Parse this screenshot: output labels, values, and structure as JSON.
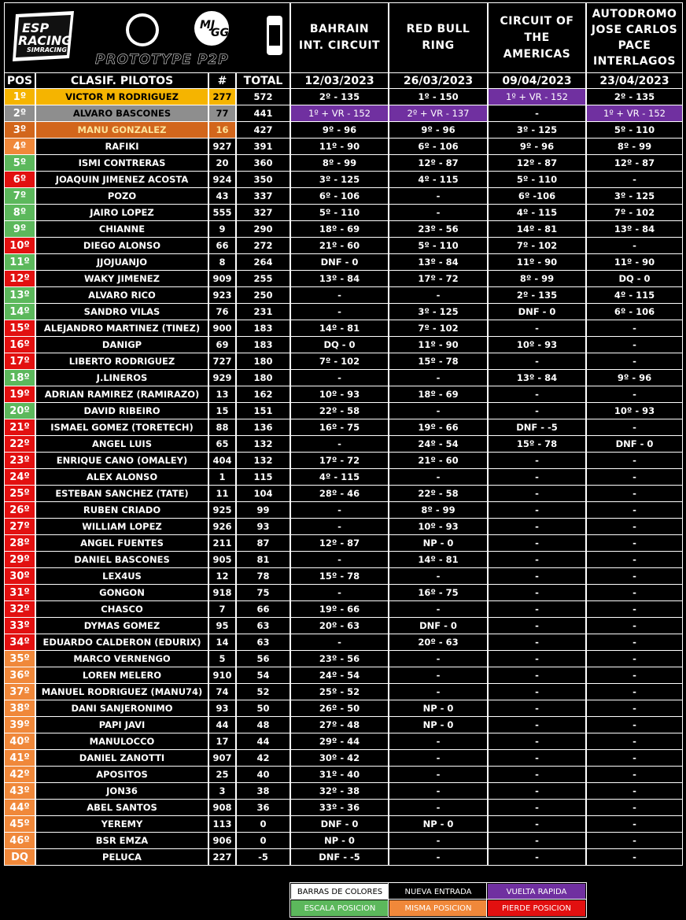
{
  "header": {
    "logos": {
      "brand": "ESP",
      "brand2": "RACING",
      "brand_sub": "SIMRACING",
      "team": "MJ",
      "team2": "GG",
      "series": "PROTOTYPE P2P"
    }
  },
  "columns": {
    "pos": "POS",
    "driver": "CLASIF. PILOTOS",
    "number": "#",
    "total": "TOTAL"
  },
  "races": [
    {
      "name_lines": [
        "BAHRAIN",
        "INT. CIRCUIT"
      ],
      "date": "12/03/2023"
    },
    {
      "name_lines": [
        "RED BULL",
        "RING"
      ],
      "date": "26/03/2023"
    },
    {
      "name_lines": [
        "CIRCUIT OF",
        "THE",
        "AMERICAS"
      ],
      "date": "09/04/2023"
    },
    {
      "name_lines": [
        "AUTODROMO",
        "JOSE CARLOS",
        "PACE",
        "INTERLAGOS"
      ],
      "date": "23/04/2023"
    }
  ],
  "rows": [
    {
      "pos": "1º",
      "name": "VICTOR M RODRIGUEZ",
      "number": 277,
      "total": 572,
      "results": [
        "2º - 135",
        "1º - 150",
        "1º + VR - 152",
        "2º - 135"
      ],
      "color": "#f5b400"
    },
    {
      "pos": "2º",
      "name": "ALVARO BASCONES",
      "number": 77,
      "total": 441,
      "results": [
        "1º + VR - 152",
        "2º + VR - 137",
        "-",
        "1º + VR - 152"
      ],
      "color": "#8e8e8e"
    },
    {
      "pos": "3º",
      "name": "MANU GONZALEZ",
      "number": 16,
      "total": 427,
      "results": [
        "9º - 96",
        "9º - 96",
        "3º - 125",
        "5º - 110"
      ],
      "color": "#d2661c"
    },
    {
      "pos": "4º",
      "name": "RAFIKI",
      "number": 927,
      "total": 391,
      "results": [
        "11º - 90",
        "6º - 106",
        "9º - 96",
        "8º - 99"
      ],
      "color": "#f0883a"
    },
    {
      "pos": "5º",
      "name": "ISMI CONTRERAS",
      "number": 20,
      "total": 360,
      "results": [
        "8º - 99",
        "12º - 87",
        "12º - 87",
        "12º - 87"
      ],
      "color": "#5cb85c"
    },
    {
      "pos": "6º",
      "name": "JOAQUIN JIMENEZ ACOSTA",
      "number": 924,
      "total": 350,
      "results": [
        "3º - 125",
        "4º - 115",
        "5º - 110",
        "-"
      ],
      "color": "#e21010"
    },
    {
      "pos": "7º",
      "name": "POZO",
      "number": 43,
      "total": 337,
      "results": [
        "6º - 106",
        "-",
        "6º -106",
        "3º - 125"
      ],
      "color": "#5cb85c"
    },
    {
      "pos": "8º",
      "name": "JAIRO LOPEZ",
      "number": 555,
      "total": 327,
      "results": [
        "5º - 110",
        "-",
        "4º - 115",
        "7º - 102"
      ],
      "color": "#5cb85c"
    },
    {
      "pos": "9º",
      "name": "CHIANNE",
      "number": 9,
      "total": 290,
      "results": [
        "18º - 69",
        "23º - 56",
        "14º - 81",
        "13º - 84"
      ],
      "color": "#5cb85c"
    },
    {
      "pos": "10º",
      "name": "DIEGO ALONSO",
      "number": 66,
      "total": 272,
      "results": [
        "21º - 60",
        "5º - 110",
        "7º - 102",
        "-"
      ],
      "color": "#e21010"
    },
    {
      "pos": "11º",
      "name": "JJOJUANJO",
      "number": 8,
      "total": 264,
      "results": [
        "DNF - 0",
        "13º - 84",
        "11º - 90",
        "11º - 90"
      ],
      "color": "#5cb85c"
    },
    {
      "pos": "12º",
      "name": "WAKY JIMENEZ",
      "number": 909,
      "total": 255,
      "results": [
        "13º - 84",
        "17º - 72",
        "8º - 99",
        "DQ - 0"
      ],
      "color": "#e21010"
    },
    {
      "pos": "13º",
      "name": "ALVARO RICO",
      "number": 923,
      "total": 250,
      "results": [
        "-",
        "-",
        "2º - 135",
        "4º - 115"
      ],
      "color": "#5cb85c"
    },
    {
      "pos": "14º",
      "name": "SANDRO VILAS",
      "number": 76,
      "total": 231,
      "results": [
        "-",
        "3º - 125",
        "DNF - 0",
        "6º - 106"
      ],
      "color": "#5cb85c"
    },
    {
      "pos": "15º",
      "name": "ALEJANDRO MARTINEZ (TINEZ)",
      "number": 900,
      "total": 183,
      "results": [
        "14º - 81",
        "7º - 102",
        "-",
        "-"
      ],
      "color": "#e21010"
    },
    {
      "pos": "16º",
      "name": "DANIGP",
      "number": 69,
      "total": 183,
      "results": [
        "DQ - 0",
        "11º - 90",
        "10º - 93",
        "-"
      ],
      "color": "#e21010"
    },
    {
      "pos": "17º",
      "name": "LIBERTO RODRIGUEZ",
      "number": 727,
      "total": 180,
      "results": [
        "7º - 102",
        "15º - 78",
        "-",
        "-"
      ],
      "color": "#e21010"
    },
    {
      "pos": "18º",
      "name": "J.LINEROS",
      "number": 929,
      "total": 180,
      "results": [
        "-",
        "-",
        "13º - 84",
        "9º - 96"
      ],
      "color": "#5cb85c"
    },
    {
      "pos": "19º",
      "name": "ADRIAN RAMIREZ (RAMIRAZO)",
      "number": 13,
      "total": 162,
      "results": [
        "10º - 93",
        "18º - 69",
        "-",
        "-"
      ],
      "color": "#e21010"
    },
    {
      "pos": "20º",
      "name": "DAVID RIBEIRO",
      "number": 15,
      "total": 151,
      "results": [
        "22º - 58",
        "-",
        "-",
        "10º - 93"
      ],
      "color": "#5cb85c"
    },
    {
      "pos": "21º",
      "name": "ISMAEL GOMEZ (TORETECH)",
      "number": 88,
      "total": 136,
      "results": [
        "16º - 75",
        "19º - 66",
        "DNF - -5",
        "-"
      ],
      "color": "#e21010"
    },
    {
      "pos": "22º",
      "name": "ANGEL LUIS",
      "number": 65,
      "total": 132,
      "results": [
        "-",
        "24º - 54",
        "15º - 78",
        "DNF - 0"
      ],
      "color": "#e21010"
    },
    {
      "pos": "23º",
      "name": "ENRIQUE CANO (OMALEY)",
      "number": 404,
      "total": 132,
      "results": [
        "17º - 72",
        "21º - 60",
        "-",
        "-"
      ],
      "color": "#e21010"
    },
    {
      "pos": "24º",
      "name": "ALEX ALONSO",
      "number": 1,
      "total": 115,
      "results": [
        "4º - 115",
        "-",
        "-",
        "-"
      ],
      "color": "#e21010"
    },
    {
      "pos": "25º",
      "name": "ESTEBAN SANCHEZ (TATE)",
      "number": 11,
      "total": 104,
      "results": [
        "28º - 46",
        "22º - 58",
        "-",
        "-"
      ],
      "color": "#e21010"
    },
    {
      "pos": "26º",
      "name": "RUBEN CRIADO",
      "number": 925,
      "total": 99,
      "results": [
        "-",
        "8º - 99",
        "-",
        "-"
      ],
      "color": "#e21010"
    },
    {
      "pos": "27º",
      "name": "WILLIAM LOPEZ",
      "number": 926,
      "total": 93,
      "results": [
        "-",
        "10º - 93",
        "-",
        "-"
      ],
      "color": "#e21010"
    },
    {
      "pos": "28º",
      "name": "ANGEL FUENTES",
      "number": 211,
      "total": 87,
      "results": [
        "12º - 87",
        "NP - 0",
        "-",
        "-"
      ],
      "color": "#e21010"
    },
    {
      "pos": "29º",
      "name": "DANIEL BASCONES",
      "number": 905,
      "total": 81,
      "results": [
        "-",
        "14º - 81",
        "-",
        "-"
      ],
      "color": "#e21010"
    },
    {
      "pos": "30º",
      "name": "LEX4US",
      "number": 12,
      "total": 78,
      "results": [
        "15º - 78",
        "-",
        "-",
        "-"
      ],
      "color": "#e21010"
    },
    {
      "pos": "31º",
      "name": "GONGON",
      "number": 918,
      "total": 75,
      "results": [
        "-",
        "16º - 75",
        "-",
        "-"
      ],
      "color": "#e21010"
    },
    {
      "pos": "32º",
      "name": "CHASCO",
      "number": 7,
      "total": 66,
      "results": [
        "19º - 66",
        "-",
        "-",
        "-"
      ],
      "color": "#e21010"
    },
    {
      "pos": "33º",
      "name": "DYMAS GOMEZ",
      "number": 95,
      "total": 63,
      "results": [
        "20º - 63",
        "DNF - 0",
        "-",
        "-"
      ],
      "color": "#e21010"
    },
    {
      "pos": "34º",
      "name": "EDUARDO CALDERON (EDURIX)",
      "number": 14,
      "total": 63,
      "results": [
        "-",
        "20º - 63",
        "-",
        "-"
      ],
      "color": "#e21010"
    },
    {
      "pos": "35º",
      "name": "MARCO VERNENGO",
      "number": 5,
      "total": 56,
      "results": [
        "23º - 56",
        "-",
        "-",
        "-"
      ],
      "color": "#f0883a"
    },
    {
      "pos": "36º",
      "name": "LOREN MELERO",
      "number": 910,
      "total": 54,
      "results": [
        "24º - 54",
        "-",
        "-",
        "-"
      ],
      "color": "#f0883a"
    },
    {
      "pos": "37º",
      "name": "MANUEL RODRIGUEZ (MANU74)",
      "number": 74,
      "total": 52,
      "results": [
        "25º - 52",
        "-",
        "-",
        "-"
      ],
      "color": "#f0883a"
    },
    {
      "pos": "38º",
      "name": "DANI SANJERONIMO",
      "number": 93,
      "total": 50,
      "results": [
        "26º - 50",
        "NP - 0",
        "-",
        "-"
      ],
      "color": "#f0883a"
    },
    {
      "pos": "39º",
      "name": "PAPI JAVI",
      "number": 44,
      "total": 48,
      "results": [
        "27º - 48",
        "NP - 0",
        "-",
        "-"
      ],
      "color": "#f0883a"
    },
    {
      "pos": "40º",
      "name": "MANULOCCO",
      "number": 17,
      "total": 44,
      "results": [
        "29º - 44",
        "-",
        "-",
        "-"
      ],
      "color": "#f0883a"
    },
    {
      "pos": "41º",
      "name": "DANIEL ZANOTTI",
      "number": 907,
      "total": 42,
      "results": [
        "30º - 42",
        "-",
        "-",
        "-"
      ],
      "color": "#f0883a"
    },
    {
      "pos": "42º",
      "name": "APOSITOS",
      "number": 25,
      "total": 40,
      "results": [
        "31º - 40",
        "-",
        "-",
        "-"
      ],
      "color": "#f0883a"
    },
    {
      "pos": "43º",
      "name": "JON36",
      "number": 3,
      "total": 38,
      "results": [
        "32º - 38",
        "-",
        "-",
        "-"
      ],
      "color": "#f0883a"
    },
    {
      "pos": "44º",
      "name": "ABEL SANTOS",
      "number": 908,
      "total": 36,
      "results": [
        "33º - 36",
        "-",
        "-",
        "-"
      ],
      "color": "#f0883a"
    },
    {
      "pos": "45º",
      "name": "YEREMY",
      "number": 113,
      "total": 0,
      "results": [
        "DNF - 0",
        "NP - 0",
        "-",
        "-"
      ],
      "color": "#f0883a"
    },
    {
      "pos": "46º",
      "name": "BSR EMZA",
      "number": 906,
      "total": 0,
      "results": [
        "NP - 0",
        "-",
        "-",
        "-"
      ],
      "color": "#f0883a"
    },
    {
      "pos": "DQ",
      "name": "PELUCA",
      "number": 227,
      "total": -5,
      "results": [
        "DNF - -5",
        "-",
        "-",
        "-"
      ],
      "color": "#f0883a"
    }
  ],
  "fast_lap_color": "#7030a0",
  "legend": [
    {
      "label": "BARRAS DE COLORES",
      "color": "#ffffff",
      "text_color": "#000000"
    },
    {
      "label": "NUEVA ENTRADA",
      "color": "#000000",
      "text_color": "#ffffff"
    },
    {
      "label": "VUELTA RAPIDA",
      "color": "#7030a0",
      "text_color": "#ffffff"
    },
    {
      "label": "ESCALA POSICION",
      "color": "#5cb85c",
      "text_color": "#ffffff"
    },
    {
      "label": "MISMA POSICION",
      "color": "#f0883a",
      "text_color": "#ffffff"
    },
    {
      "label": "PIERDE POSICION",
      "color": "#e21010",
      "text_color": "#ffffff"
    }
  ]
}
